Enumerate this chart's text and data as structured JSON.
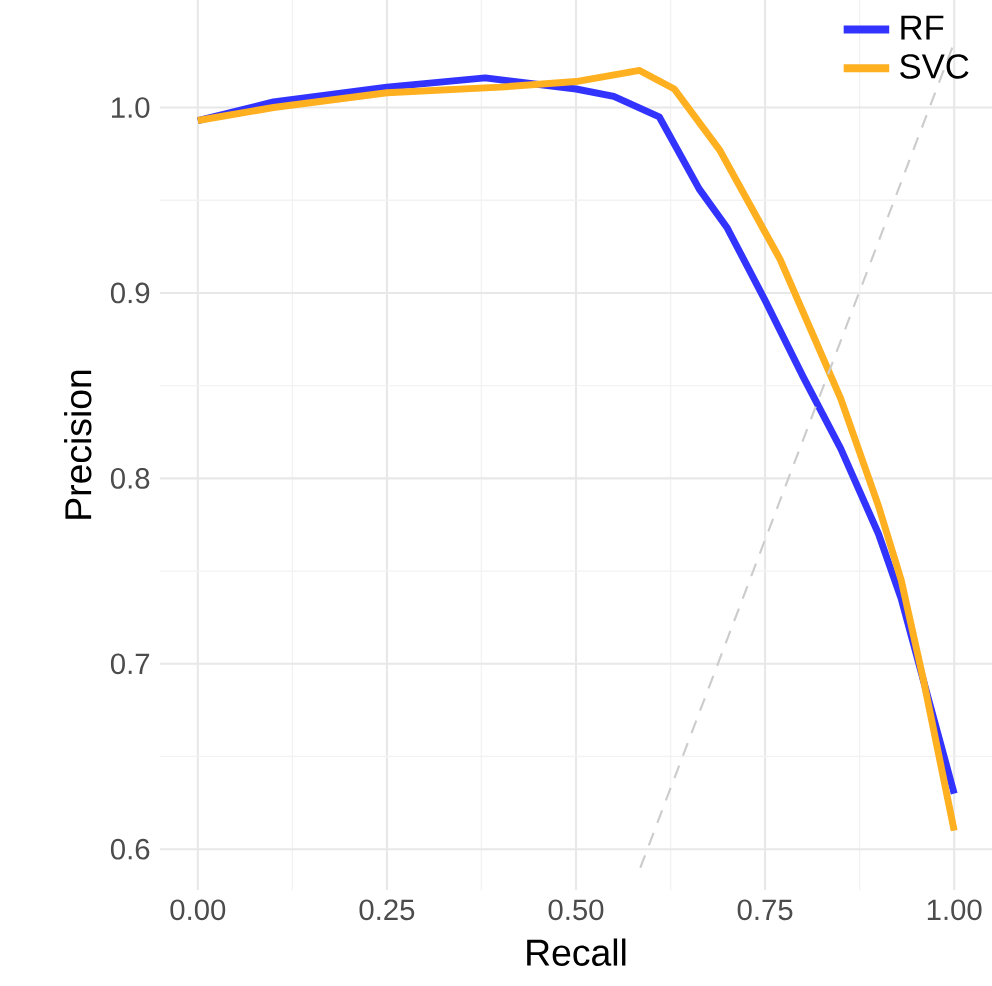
{
  "chart_data": {
    "type": "line",
    "xlabel": "Recall",
    "ylabel": "Precision",
    "xlim": [
      -0.05,
      1.05
    ],
    "ylim": [
      0.578,
      1.058
    ],
    "xticks": [
      {
        "value": 0,
        "label": "0.00"
      },
      0.25,
      {
        "value": 0.5,
        "label": "0.50"
      },
      0.75,
      {
        "value": 1,
        "label": "1.00"
      }
    ],
    "yticks": [
      0.6,
      0.7,
      0.8,
      0.9,
      {
        "value": 1,
        "label": "1.0"
      }
    ],
    "grid": true,
    "legend": "top right",
    "series": [
      {
        "name": "RF",
        "color": "#3333ff",
        "x": [
          0,
          0.1,
          0.25,
          0.38,
          0.5,
          0.55,
          0.61,
          0.663,
          0.7,
          0.75,
          0.8,
          0.85,
          0.9,
          0.93,
          0.96,
          1.0
        ],
        "values": [
          0.993,
          1.003,
          1.011,
          1.016,
          1.01,
          1.006,
          0.995,
          0.956,
          0.935,
          0.896,
          0.855,
          0.816,
          0.77,
          0.735,
          0.69,
          0.63
        ]
      },
      {
        "name": "SVC",
        "color": "#ffb020",
        "x": [
          0,
          0.1,
          0.25,
          0.4,
          0.5,
          0.584,
          0.63,
          0.69,
          0.77,
          0.85,
          0.9,
          0.93,
          0.96,
          1.0
        ],
        "values": [
          0.993,
          1.0,
          1.008,
          1.011,
          1.014,
          1.02,
          1.01,
          0.977,
          0.918,
          0.843,
          0.785,
          0.745,
          0.69,
          0.61
        ]
      },
      {
        "type": "line",
        "color": "#cccccc",
        "line_style": "dashed",
        "x": [
          0.585,
          1.0
        ],
        "values": [
          0.59,
          1.035
        ]
      }
    ]
  }
}
